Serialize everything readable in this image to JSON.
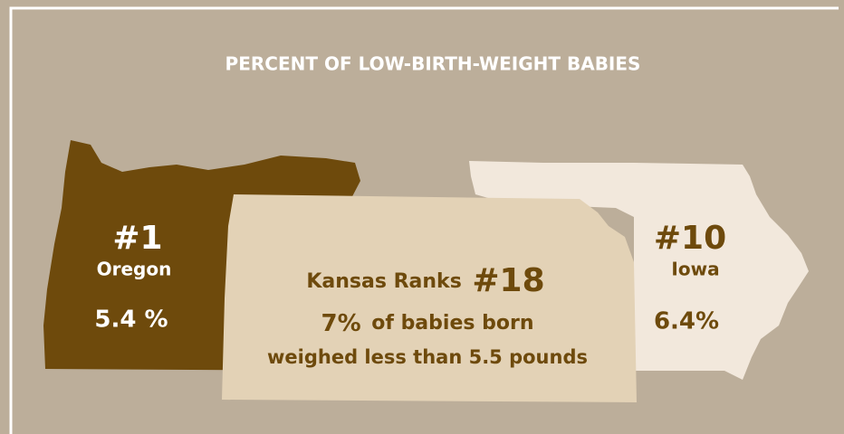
{
  "title": "PERCENT OF LOW-BIRTH-WEIGHT BABIES",
  "oregon": {
    "rank": "#1",
    "name": "Oregon",
    "value": "5.4 %"
  },
  "iowa": {
    "rank": "#10",
    "name": "Iowa",
    "value": "6.4%"
  },
  "kansas": {
    "heading": "Kansas Ranks",
    "rank": "#18",
    "percent": "7%",
    "line1": "of babies born",
    "line2": "weighed less than 5.5 pounds"
  }
}
